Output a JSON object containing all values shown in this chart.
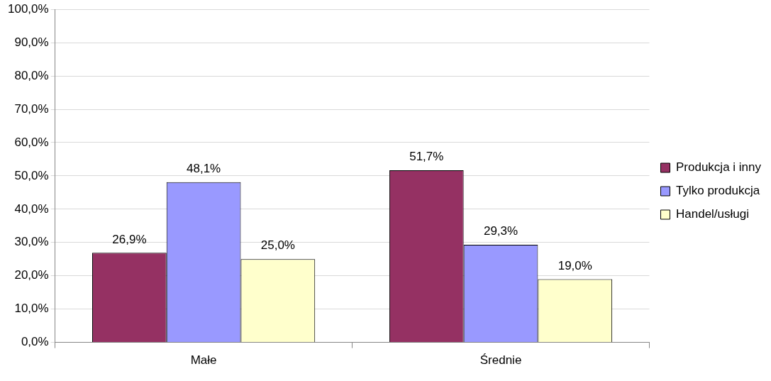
{
  "chart_data": {
    "type": "bar",
    "categories": [
      "Małe",
      "Średnie"
    ],
    "series": [
      {
        "name": "Produkcja i inny",
        "color": "#953163",
        "values": [
          26.9,
          51.7
        ],
        "value_labels": [
          "26,9%",
          "51,7%"
        ]
      },
      {
        "name": "Tylko produkcja",
        "color": "#9999ff",
        "values": [
          48.1,
          29.3
        ],
        "value_labels": [
          "48,1%",
          "29,3%"
        ]
      },
      {
        "name": "Handel/usługi",
        "color": "#ffffcc",
        "values": [
          25.0,
          19.0
        ],
        "value_labels": [
          "25,0%",
          "19,0%"
        ]
      }
    ],
    "ylim": [
      0,
      100
    ],
    "yticks": [
      {
        "value": 0,
        "label": "0,0%"
      },
      {
        "value": 10,
        "label": "10,0%"
      },
      {
        "value": 20,
        "label": "20,0%"
      },
      {
        "value": 30,
        "label": "30,0%"
      },
      {
        "value": 40,
        "label": "40,0%"
      },
      {
        "value": 50,
        "label": "50,0%"
      },
      {
        "value": 60,
        "label": "60,0%"
      },
      {
        "value": 70,
        "label": "70,0%"
      },
      {
        "value": 80,
        "label": "80,0%"
      },
      {
        "value": 90,
        "label": "90,0%"
      },
      {
        "value": 100,
        "label": "100,0%"
      }
    ],
    "grid": "y",
    "legend": "right"
  }
}
